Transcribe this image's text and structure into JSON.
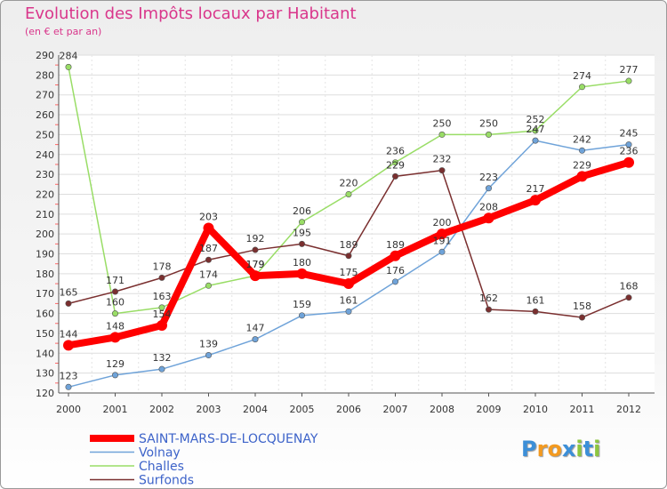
{
  "header": {
    "title": "Evolution des Impôts locaux par Habitant",
    "subtitle": "(en € et par an)"
  },
  "logo": {
    "text": "Proxiti",
    "letters": [
      "P",
      "r",
      "o",
      "x",
      "i",
      "t",
      "i"
    ],
    "colors": [
      "#3c8fd8",
      "#f39a20",
      "#f39a20",
      "#3c8fd8",
      "#8dc63f",
      "#3c8fd8",
      "#8dc63f"
    ]
  },
  "chart_data": {
    "type": "line",
    "title": "Evolution des Impôts locaux par Habitant",
    "subtitle": "(en € et par an)",
    "xlabel": "",
    "ylabel": "",
    "x": [
      "2000",
      "2001",
      "2002",
      "2003",
      "2004",
      "2005",
      "2006",
      "2007",
      "2008",
      "2009",
      "2010",
      "2011",
      "2012"
    ],
    "ylim": [
      120,
      290
    ],
    "yticks": [
      120,
      130,
      140,
      150,
      160,
      170,
      180,
      190,
      200,
      210,
      220,
      230,
      240,
      250,
      260,
      270,
      280,
      290
    ],
    "grid": "horizontal",
    "legend": "bottom-left",
    "series": [
      {
        "name": "SAINT-MARS-DE-LOCQUENAY",
        "color": "#ff0000",
        "values": [
          144,
          148,
          154,
          203,
          179,
          180,
          175,
          189,
          200,
          208,
          217,
          229,
          236
        ]
      },
      {
        "name": "Volnay",
        "color": "#6fa3d9",
        "values": [
          123,
          129,
          132,
          139,
          147,
          159,
          161,
          176,
          191,
          223,
          247,
          242,
          245
        ]
      },
      {
        "name": "Challes",
        "color": "#99dd66",
        "values": [
          284,
          160,
          163,
          174,
          179,
          206,
          220,
          236,
          250,
          250,
          252,
          274,
          277
        ]
      },
      {
        "name": "Surfonds",
        "color": "#7a2f2f",
        "values": [
          165,
          171,
          178,
          187,
          192,
          195,
          189,
          229,
          232,
          162,
          161,
          158,
          168
        ]
      }
    ]
  }
}
